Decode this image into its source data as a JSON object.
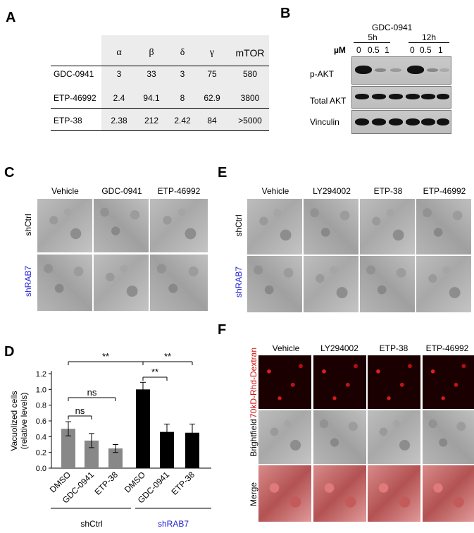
{
  "panels": {
    "A": "A",
    "B": "B",
    "C": "C",
    "D": "D",
    "E": "E",
    "F": "F"
  },
  "tableA": {
    "headers": [
      "α",
      "β",
      "δ",
      "γ",
      "mTOR"
    ],
    "rows": [
      {
        "name": "GDC-0941",
        "values": [
          "3",
          "33",
          "3",
          "75",
          "580"
        ]
      },
      {
        "name": "ETP-46992",
        "values": [
          "2.4",
          "94.1",
          "8",
          "62.9",
          "3800"
        ]
      },
      {
        "name": "ETP-38",
        "values": [
          "2.38",
          "212",
          "2.42",
          "84",
          ">5000"
        ]
      }
    ]
  },
  "blotB": {
    "title": "GDC-0941",
    "times": [
      "5h",
      "12h"
    ],
    "unit": "µM",
    "doses": [
      "0",
      "0.5",
      "1",
      "0",
      "0.5",
      "1"
    ],
    "rows": [
      "p-AKT",
      "Total AKT",
      "Vinculin"
    ]
  },
  "panelC": {
    "cols": [
      "Vehicle",
      "GDC-0941",
      "ETP-46992"
    ],
    "rows": [
      "shCtrl",
      "shRAB7"
    ]
  },
  "panelE": {
    "cols": [
      "Vehicle",
      "LY294002",
      "ETP-38",
      "ETP-46992"
    ],
    "rows": [
      "shCtrl",
      "shRAB7"
    ]
  },
  "panelF": {
    "cols": [
      "Vehicle",
      "LY294002",
      "ETP-38",
      "ETP-46992"
    ],
    "rows": [
      "70kD-Rhd-Dextran",
      "Brightfield",
      "Merge"
    ]
  },
  "chart_data": {
    "type": "bar",
    "ylabel": "Vacuolized cells (relative levels)",
    "ylabel_lines": [
      "Vacuolized cells",
      "(relative levels)"
    ],
    "ylim": [
      0,
      1.2
    ],
    "yticks": [
      "0.0",
      "0.2",
      "0.4",
      "0.6",
      "0.8",
      "1.0",
      "1.2"
    ],
    "categories": [
      "DMSO",
      "GDC-0941",
      "ETP-38",
      "DMSO",
      "GDC-0941",
      "ETP-38"
    ],
    "values": [
      0.5,
      0.35,
      0.25,
      1.0,
      0.46,
      0.45
    ],
    "errors": [
      0.09,
      0.09,
      0.05,
      0.09,
      0.1,
      0.11
    ],
    "colors": [
      "#888888",
      "#888888",
      "#888888",
      "#000000",
      "#000000",
      "#000000"
    ],
    "groups": [
      {
        "name": "shCtrl",
        "color": "#000000"
      },
      {
        "name": "shRAB7",
        "color": "#2323d4"
      }
    ],
    "significance": [
      "**",
      "ns",
      "ns",
      "**",
      "**"
    ]
  }
}
